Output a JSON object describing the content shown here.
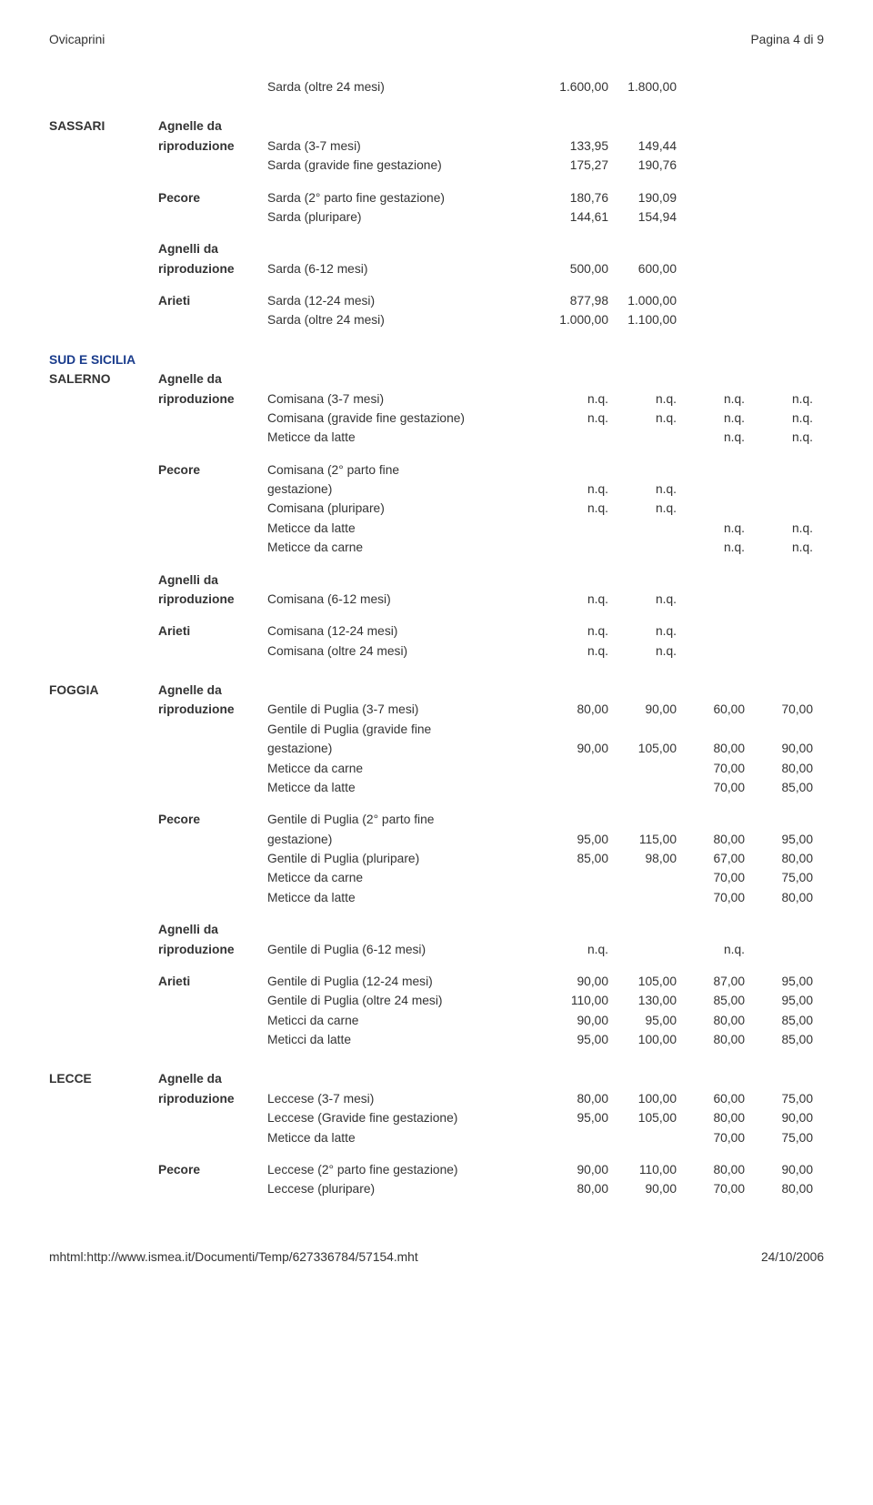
{
  "header": {
    "left": "Ovicaprini",
    "right": "Pagina 4 di 9"
  },
  "footer": {
    "left": "mhtml:http://www.ismea.it/Documenti/Temp/627336784/57154.mht",
    "right": "24/10/2006"
  },
  "labels": {
    "agnelle": "Agnelle da",
    "riproduzione": "riproduzione",
    "pecore": "Pecore",
    "agnelli": "Agnelli da",
    "arieti": "Arieti"
  },
  "rows": [
    {
      "loc": "",
      "cat": "",
      "desc": "Sarda (oltre 24 mesi)",
      "n1": "1.600,00",
      "n2": "1.800,00",
      "n3": "",
      "n4": ""
    },
    {
      "gap": "lg"
    },
    {
      "loc": "SASSARI",
      "cat_key": "agnelle",
      "desc": "",
      "n1": "",
      "n2": "",
      "n3": "",
      "n4": "",
      "loc_bold": true
    },
    {
      "loc": "",
      "cat_key": "riproduzione",
      "desc": "Sarda (3-7 mesi)",
      "n1": "133,95",
      "n2": "149,44",
      "n3": "",
      "n4": ""
    },
    {
      "loc": "",
      "cat": "",
      "desc": "Sarda (gravide fine gestazione)",
      "n1": "175,27",
      "n2": "190,76",
      "n3": "",
      "n4": ""
    },
    {
      "gap": "md"
    },
    {
      "loc": "",
      "cat_key": "pecore",
      "desc": "Sarda (2° parto fine gestazione)",
      "n1": "180,76",
      "n2": "190,09",
      "n3": "",
      "n4": ""
    },
    {
      "loc": "",
      "cat": "",
      "desc": "Sarda (pluripare)",
      "n1": "144,61",
      "n2": "154,94",
      "n3": "",
      "n4": ""
    },
    {
      "gap": "md"
    },
    {
      "loc": "",
      "cat_key": "agnelli",
      "desc": "",
      "n1": "",
      "n2": "",
      "n3": "",
      "n4": ""
    },
    {
      "loc": "",
      "cat_key": "riproduzione",
      "desc": "Sarda (6-12 mesi)",
      "n1": "500,00",
      "n2": "600,00",
      "n3": "",
      "n4": ""
    },
    {
      "gap": "md"
    },
    {
      "loc": "",
      "cat_key": "arieti",
      "desc": "Sarda (12-24 mesi)",
      "n1": "877,98",
      "n2": "1.000,00",
      "n3": "",
      "n4": ""
    },
    {
      "loc": "",
      "cat": "",
      "desc": "Sarda (oltre 24 mesi)",
      "n1": "1.000,00",
      "n2": "1.100,00",
      "n3": "",
      "n4": ""
    },
    {
      "gap": "lg"
    },
    {
      "loc": "SUD E SICILIA",
      "cat": "",
      "desc": "",
      "n1": "",
      "n2": "",
      "n3": "",
      "n4": "",
      "loc_bold": true,
      "loc_blue": true
    },
    {
      "loc": "SALERNO",
      "cat_key": "agnelle",
      "desc": "",
      "n1": "",
      "n2": "",
      "n3": "",
      "n4": "",
      "loc_bold": true
    },
    {
      "loc": "",
      "cat_key": "riproduzione",
      "desc": "Comisana (3-7 mesi)",
      "n1": "n.q.",
      "n2": "n.q.",
      "n3": "n.q.",
      "n4": "n.q."
    },
    {
      "loc": "",
      "cat": "",
      "desc": "Comisana (gravide fine gestazione)",
      "n1": "n.q.",
      "n2": "n.q.",
      "n3": "n.q.",
      "n4": "n.q."
    },
    {
      "loc": "",
      "cat": "",
      "desc": "Meticce da latte",
      "n1": "",
      "n2": "",
      "n3": "n.q.",
      "n4": "n.q."
    },
    {
      "gap": "md"
    },
    {
      "loc": "",
      "cat_key": "pecore",
      "desc": "Comisana (2° parto fine",
      "n1": "",
      "n2": "",
      "n3": "",
      "n4": ""
    },
    {
      "loc": "",
      "cat": "",
      "desc": "gestazione)",
      "n1": "n.q.",
      "n2": "n.q.",
      "n3": "",
      "n4": ""
    },
    {
      "loc": "",
      "cat": "",
      "desc": "Comisana (pluripare)",
      "n1": "n.q.",
      "n2": "n.q.",
      "n3": "",
      "n4": ""
    },
    {
      "loc": "",
      "cat": "",
      "desc": "Meticce da latte",
      "n1": "",
      "n2": "",
      "n3": "n.q.",
      "n4": "n.q."
    },
    {
      "loc": "",
      "cat": "",
      "desc": "Meticce da carne",
      "n1": "",
      "n2": "",
      "n3": "n.q.",
      "n4": "n.q."
    },
    {
      "gap": "md"
    },
    {
      "loc": "",
      "cat_key": "agnelli",
      "desc": "",
      "n1": "",
      "n2": "",
      "n3": "",
      "n4": ""
    },
    {
      "loc": "",
      "cat_key": "riproduzione",
      "desc": "Comisana (6-12 mesi)",
      "n1": "n.q.",
      "n2": "n.q.",
      "n3": "",
      "n4": ""
    },
    {
      "gap": "md"
    },
    {
      "loc": "",
      "cat_key": "arieti",
      "desc": "Comisana (12-24 mesi)",
      "n1": "n.q.",
      "n2": "n.q.",
      "n3": "",
      "n4": ""
    },
    {
      "loc": "",
      "cat": "",
      "desc": "Comisana (oltre 24 mesi)",
      "n1": "n.q.",
      "n2": "n.q.",
      "n3": "",
      "n4": ""
    },
    {
      "gap": "lg"
    },
    {
      "loc": "FOGGIA",
      "cat_key": "agnelle",
      "desc": "",
      "n1": "",
      "n2": "",
      "n3": "",
      "n4": "",
      "loc_bold": true
    },
    {
      "loc": "",
      "cat_key": "riproduzione",
      "desc": "Gentile di Puglia (3-7 mesi)",
      "n1": "80,00",
      "n2": "90,00",
      "n3": "60,00",
      "n4": "70,00"
    },
    {
      "loc": "",
      "cat": "",
      "desc": "Gentile di Puglia (gravide fine",
      "n1": "",
      "n2": "",
      "n3": "",
      "n4": ""
    },
    {
      "loc": "",
      "cat": "",
      "desc": "gestazione)",
      "n1": "90,00",
      "n2": "105,00",
      "n3": "80,00",
      "n4": "90,00"
    },
    {
      "loc": "",
      "cat": "",
      "desc": "Meticce da carne",
      "n1": "",
      "n2": "",
      "n3": "70,00",
      "n4": "80,00"
    },
    {
      "loc": "",
      "cat": "",
      "desc": "Meticce da latte",
      "n1": "",
      "n2": "",
      "n3": "70,00",
      "n4": "85,00"
    },
    {
      "gap": "md"
    },
    {
      "loc": "",
      "cat_key": "pecore",
      "desc": "Gentile di Puglia (2° parto fine",
      "n1": "",
      "n2": "",
      "n3": "",
      "n4": ""
    },
    {
      "loc": "",
      "cat": "",
      "desc": "gestazione)",
      "n1": "95,00",
      "n2": "115,00",
      "n3": "80,00",
      "n4": "95,00"
    },
    {
      "loc": "",
      "cat": "",
      "desc": "Gentile di Puglia (pluripare)",
      "n1": "85,00",
      "n2": "98,00",
      "n3": "67,00",
      "n4": "80,00"
    },
    {
      "loc": "",
      "cat": "",
      "desc": "Meticce da carne",
      "n1": "",
      "n2": "",
      "n3": "70,00",
      "n4": "75,00"
    },
    {
      "loc": "",
      "cat": "",
      "desc": "Meticce da latte",
      "n1": "",
      "n2": "",
      "n3": "70,00",
      "n4": "80,00"
    },
    {
      "gap": "md"
    },
    {
      "loc": "",
      "cat_key": "agnelli",
      "desc": "",
      "n1": "",
      "n2": "",
      "n3": "",
      "n4": ""
    },
    {
      "loc": "",
      "cat_key": "riproduzione",
      "desc": "Gentile di Puglia (6-12 mesi)",
      "n1": "n.q.",
      "n2": "",
      "n3": "n.q.",
      "n4": ""
    },
    {
      "gap": "md"
    },
    {
      "loc": "",
      "cat_key": "arieti",
      "desc": "Gentile di Puglia (12-24 mesi)",
      "n1": "90,00",
      "n2": "105,00",
      "n3": "87,00",
      "n4": "95,00"
    },
    {
      "loc": "",
      "cat": "",
      "desc": "Gentile di Puglia (oltre 24 mesi)",
      "n1": "110,00",
      "n2": "130,00",
      "n3": "85,00",
      "n4": "95,00"
    },
    {
      "loc": "",
      "cat": "",
      "desc": "Meticci da carne",
      "n1": "90,00",
      "n2": "95,00",
      "n3": "80,00",
      "n4": "85,00"
    },
    {
      "loc": "",
      "cat": "",
      "desc": "Meticci da latte",
      "n1": "95,00",
      "n2": "100,00",
      "n3": "80,00",
      "n4": "85,00"
    },
    {
      "gap": "lg"
    },
    {
      "loc": "LECCE",
      "cat_key": "agnelle",
      "desc": "",
      "n1": "",
      "n2": "",
      "n3": "",
      "n4": "",
      "loc_bold": true
    },
    {
      "loc": "",
      "cat_key": "riproduzione",
      "desc": "Leccese (3-7 mesi)",
      "n1": "80,00",
      "n2": "100,00",
      "n3": "60,00",
      "n4": "75,00"
    },
    {
      "loc": "",
      "cat": "",
      "desc": "Leccese (Gravide fine gestazione)",
      "n1": "95,00",
      "n2": "105,00",
      "n3": "80,00",
      "n4": "90,00"
    },
    {
      "loc": "",
      "cat": "",
      "desc": "Meticce da latte",
      "n1": "",
      "n2": "",
      "n3": "70,00",
      "n4": "75,00"
    },
    {
      "gap": "md"
    },
    {
      "loc": "",
      "cat_key": "pecore",
      "desc": "Leccese (2° parto fine gestazione)",
      "n1": "90,00",
      "n2": "110,00",
      "n3": "80,00",
      "n4": "90,00"
    },
    {
      "loc": "",
      "cat": "",
      "desc": "Leccese (pluripare)",
      "n1": "80,00",
      "n2": "90,00",
      "n3": "70,00",
      "n4": "80,00"
    }
  ]
}
